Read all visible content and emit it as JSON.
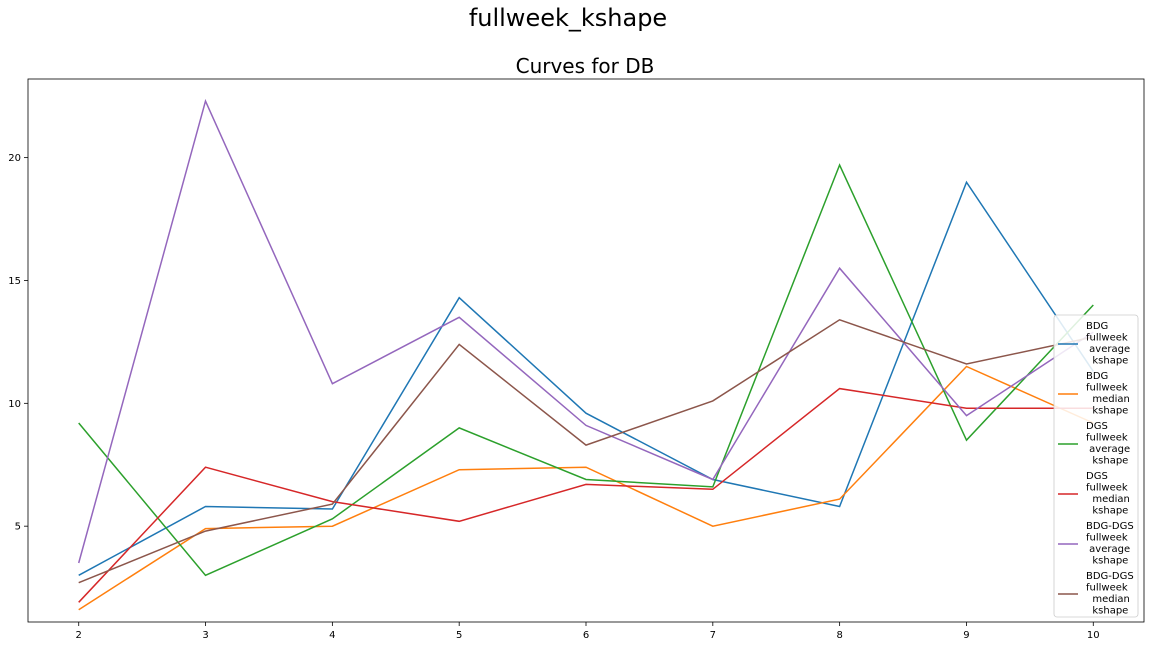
{
  "suptitle": "fullweek_kshape",
  "chart_data": {
    "type": "line",
    "title": "Curves for DB",
    "xlabel": "",
    "ylabel": "",
    "x": [
      2,
      3,
      4,
      5,
      6,
      7,
      8,
      9,
      10
    ],
    "xlim": [
      1.6,
      10.4
    ],
    "ylim": [
      1.1,
      23.2
    ],
    "xticks": [
      2,
      3,
      4,
      5,
      6,
      7,
      8,
      9,
      10
    ],
    "yticks": [
      5,
      10,
      15,
      20
    ],
    "grid": false,
    "legend_position": "right",
    "series": [
      {
        "name": "BDG\nfullweek\n average\n  kshape",
        "color": "#1f77b4",
        "values": [
          3.0,
          5.8,
          5.7,
          14.3,
          9.6,
          6.9,
          5.8,
          19.0,
          11.3
        ]
      },
      {
        "name": "BDG\nfullweek\n  median\n  kshape",
        "color": "#ff7f0e",
        "values": [
          1.6,
          4.9,
          5.0,
          7.3,
          7.4,
          5.0,
          6.1,
          11.5,
          9.2
        ]
      },
      {
        "name": "DGS\nfullweek\n average\n  kshape",
        "color": "#2ca02c",
        "values": [
          9.2,
          3.0,
          5.3,
          9.0,
          6.9,
          6.6,
          19.7,
          8.5,
          14.0
        ]
      },
      {
        "name": "DGS\nfullweek\n  median\n  kshape",
        "color": "#d62728",
        "values": [
          1.9,
          7.4,
          6.0,
          5.2,
          6.7,
          6.5,
          10.6,
          9.8,
          9.8
        ]
      },
      {
        "name": "BDG-DGS\nfullweek\n average\n  kshape",
        "color": "#9467bd",
        "values": [
          3.5,
          22.3,
          10.8,
          13.5,
          9.1,
          6.9,
          15.5,
          9.5,
          12.9
        ]
      },
      {
        "name": "BDG-DGS\nfullweek\n  median\n  kshape",
        "color": "#8c564b",
        "values": [
          2.7,
          4.8,
          5.9,
          12.4,
          8.3,
          10.1,
          13.4,
          11.6,
          12.7
        ]
      }
    ]
  }
}
